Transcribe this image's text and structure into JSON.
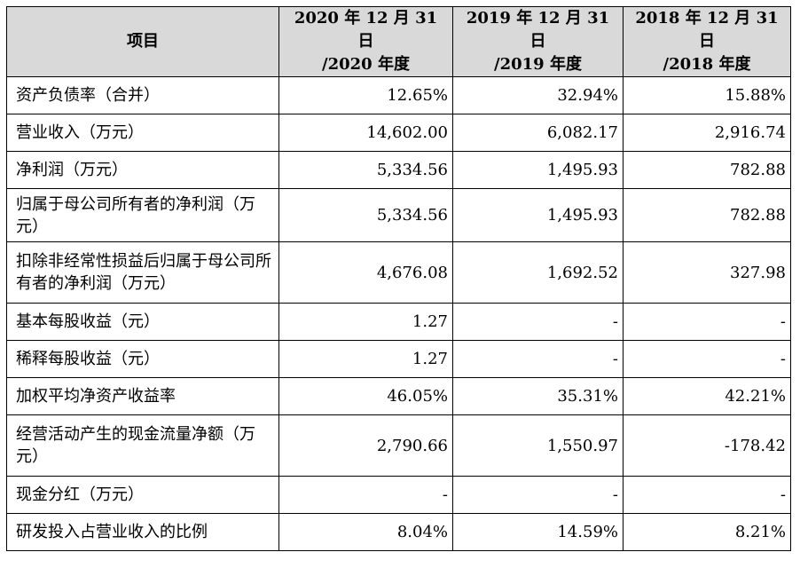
{
  "table": {
    "header": {
      "item": "项目",
      "col1_line1": "2020 年 12 月 31 日",
      "col1_line2": "/2020 年度",
      "col2_line1": "2019 年 12 月 31 日",
      "col2_line2": "/2019 年度",
      "col3_line1": "2018 年 12 月 31 日",
      "col3_line2": "/2018 年度"
    },
    "rows": [
      {
        "label": "资产负债率（合并）",
        "v2020": "12.65%",
        "v2019": "32.94%",
        "v2018": "15.88%"
      },
      {
        "label": "营业收入（万元）",
        "v2020": "14,602.00",
        "v2019": "6,082.17",
        "v2018": "2,916.74"
      },
      {
        "label": "净利润（万元）",
        "v2020": "5,334.56",
        "v2019": "1,495.93",
        "v2018": "782.88"
      },
      {
        "label": "归属于母公司所有者的净利润（万元）",
        "v2020": "5,334.56",
        "v2019": "1,495.93",
        "v2018": "782.88"
      },
      {
        "label": "扣除非经常性损益后归属于母公司所有者的净利润（万元）",
        "v2020": "4,676.08",
        "v2019": "1,692.52",
        "v2018": "327.98"
      },
      {
        "label": "基本每股收益（元）",
        "v2020": "1.27",
        "v2019": "-",
        "v2018": "-"
      },
      {
        "label": "稀释每股收益（元）",
        "v2020": "1.27",
        "v2019": "-",
        "v2018": "-"
      },
      {
        "label": "加权平均净资产收益率",
        "v2020": "46.05%",
        "v2019": "35.31%",
        "v2018": "42.21%"
      },
      {
        "label": "经营活动产生的现金流量净额（万元）",
        "v2020": "2,790.66",
        "v2019": "1,550.97",
        "v2018": "-178.42"
      },
      {
        "label": "现金分红（万元）",
        "v2020": "-",
        "v2019": "-",
        "v2018": "-"
      },
      {
        "label": "研发投入占营业收入的比例",
        "v2020": "8.04%",
        "v2019": "14.59%",
        "v2018": "8.21%"
      }
    ]
  }
}
